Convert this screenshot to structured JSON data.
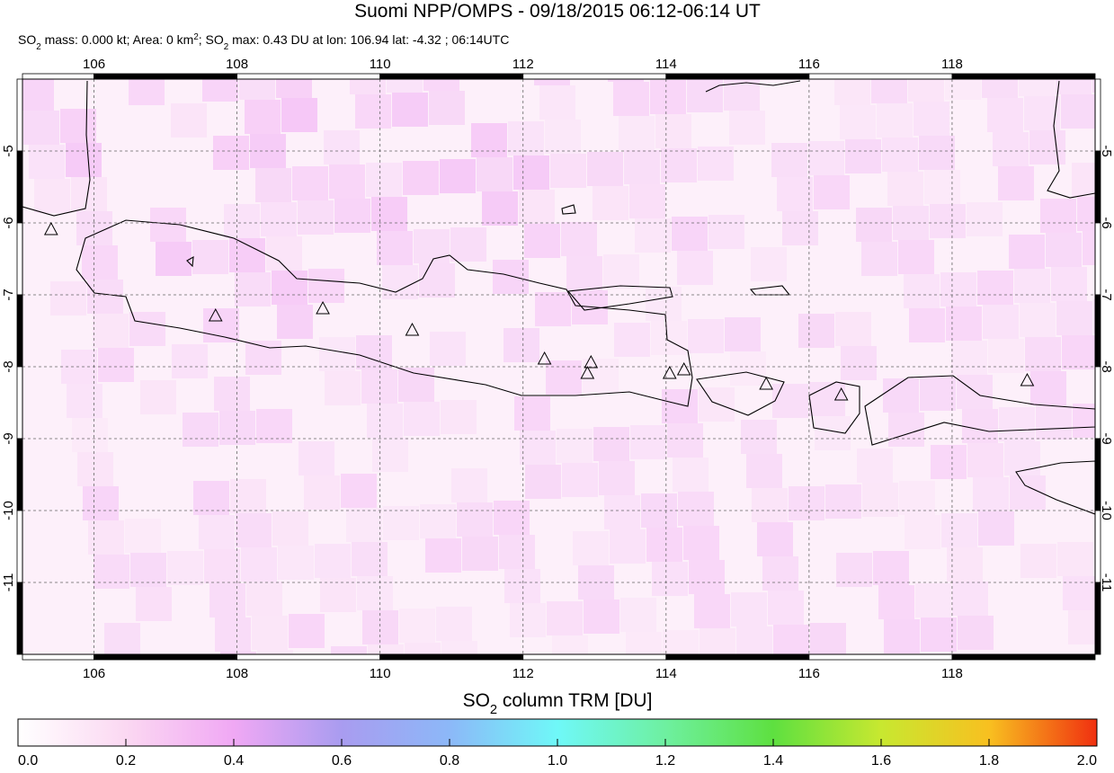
{
  "chart_data": {
    "type": "map",
    "title": "Suomi NPP/OMPS - 09/18/2015 06:12-06:14 UT",
    "subtitle_parts": [
      "SO",
      "2",
      " mass: 0.000 kt; Area: 0 km",
      "2",
      "; SO",
      "2",
      " max: 0.43 DU at lon: 106.94 lat: -4.32 ; 06:14UTC"
    ],
    "xlim": [
      105,
      120
    ],
    "ylim": [
      -12,
      -4
    ],
    "xticks": [
      106,
      108,
      110,
      112,
      114,
      116,
      118
    ],
    "yticks": [
      -5,
      -6,
      -7,
      -8,
      -9,
      -10,
      -11
    ],
    "grid": true,
    "volcanoes": {
      "lon": [
        105.4,
        107.7,
        109.2,
        110.45,
        112.3,
        112.95,
        112.9,
        114.05,
        114.25,
        115.4,
        116.45,
        119.05
      ],
      "lat": [
        -6.1,
        -7.3,
        -7.2,
        -7.5,
        -7.9,
        -7.95,
        -8.1,
        -8.1,
        -8.05,
        -8.25,
        -8.4,
        -8.2
      ]
    },
    "colorbar": {
      "label_parts": [
        "SO",
        "2",
        " column TRM [DU]"
      ],
      "lim": [
        0,
        2
      ],
      "ticks": [
        {
          "value": 0,
          "label": "0.0"
        },
        {
          "value": 0.2,
          "label": "0.2"
        },
        {
          "value": 0.4,
          "label": "0.4"
        },
        {
          "value": 0.6,
          "label": "0.6"
        },
        {
          "value": 0.8,
          "label": "0.8"
        },
        {
          "value": 1,
          "label": "1.0"
        },
        {
          "value": 1.2,
          "label": "1.2"
        },
        {
          "value": 1.4,
          "label": "1.4"
        },
        {
          "value": 1.6,
          "label": "1.6"
        },
        {
          "value": 1.8,
          "label": "1.8"
        },
        {
          "value": 2,
          "label": "2.0"
        }
      ],
      "colors": [
        "#ffffff",
        "#fbd8f2",
        "#f0a8f4",
        "#a99cf0",
        "#8cb8f8",
        "#6ff8f8",
        "#6ef0a0",
        "#5ee040",
        "#c8e830",
        "#f8c020",
        "#f03010"
      ]
    }
  }
}
